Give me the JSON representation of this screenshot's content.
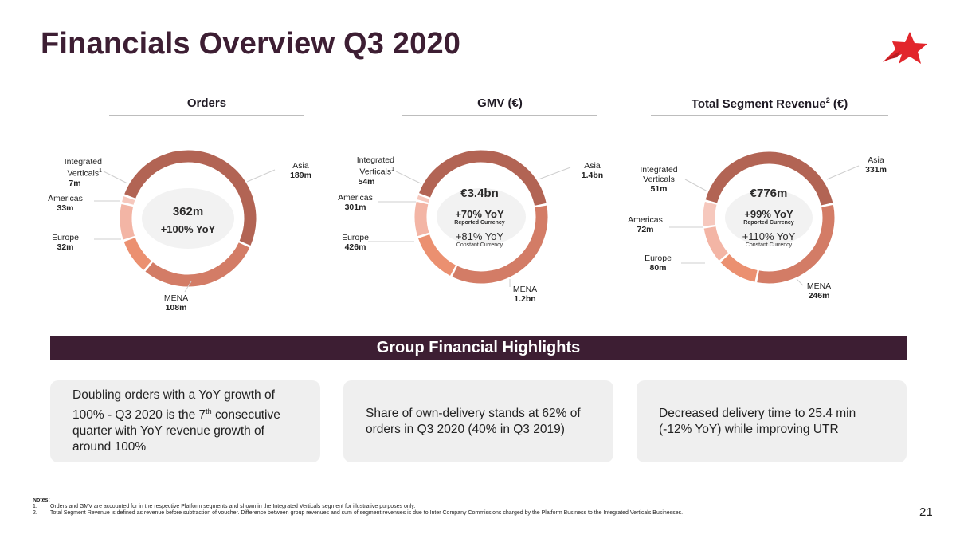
{
  "title": "Financials Overview Q3 2020",
  "page_number": "21",
  "colors": {
    "brand_dark": "#3d1e33",
    "asia": "#b26454",
    "mena": "#d37c66",
    "europe": "#eb9070",
    "americas": "#f3b5a5",
    "integrated": "#f6c8bd",
    "logo_red": "#e2262c"
  },
  "columns": [
    {
      "heading": "Orders",
      "heading_sup": "",
      "heading_suffix": "",
      "center": {
        "value": "362m",
        "yoy": "+100% YoY"
      },
      "segments": [
        {
          "label": "Asia",
          "sup": "",
          "value": "189m",
          "share": 189
        },
        {
          "label": "MENA",
          "sup": "",
          "value": "108m",
          "share": 108
        },
        {
          "label": "Europe",
          "sup": "",
          "value": "32m",
          "share": 32
        },
        {
          "label": "Americas",
          "sup": "",
          "value": "33m",
          "share": 33
        },
        {
          "label": "Integrated Verticals",
          "sup": "1",
          "value": "7m",
          "share": 7
        }
      ]
    },
    {
      "heading": "GMV (€)",
      "heading_sup": "",
      "heading_suffix": "",
      "center": {
        "value": "€3.4bn",
        "yoy_reported": "+70% YoY",
        "reported_label": "Reported Currency",
        "yoy_constant": "+81% YoY",
        "constant_label": "Constant Currency"
      },
      "segments": [
        {
          "label": "Asia",
          "sup": "",
          "value": "1.4bn",
          "share": 1400
        },
        {
          "label": "MENA",
          "sup": "",
          "value": "1.2bn",
          "share": 1200
        },
        {
          "label": "Europe",
          "sup": "",
          "value": "426m",
          "share": 426
        },
        {
          "label": "Americas",
          "sup": "",
          "value": "301m",
          "share": 301
        },
        {
          "label": "Integrated Verticals",
          "sup": "1",
          "value": "54m",
          "share": 54
        }
      ]
    },
    {
      "heading": "Total Segment Revenue",
      "heading_sup": "2",
      "heading_suffix": " (€)",
      "center": {
        "value": "€776m",
        "yoy_reported": "+99% YoY",
        "reported_label": "Reported Currency",
        "yoy_constant": "+110% YoY",
        "constant_label": "Constant Currency"
      },
      "segments": [
        {
          "label": "Asia",
          "sup": "",
          "value": "331m",
          "share": 331
        },
        {
          "label": "MENA",
          "sup": "",
          "value": "246m",
          "share": 246
        },
        {
          "label": "Europe",
          "sup": "",
          "value": "80m",
          "share": 80
        },
        {
          "label": "Americas",
          "sup": "",
          "value": "72m",
          "share": 72
        },
        {
          "label": "Integrated Verticals",
          "sup": "",
          "value": "51m",
          "share": 51
        }
      ]
    }
  ],
  "highlights": {
    "banner": "Group Financial Highlights",
    "cards": [
      {
        "text_before": "Doubling orders with a YoY growth of 100% - Q3 2020 is the 7",
        "sup": "th",
        "text_after": " consecutive quarter with YoY revenue growth of around 100%"
      },
      {
        "text_before": "Share of own-delivery stands at 62% of orders in Q3 2020 (40% in Q3 2019)",
        "sup": "",
        "text_after": ""
      },
      {
        "text_before": "Decreased delivery time to 25.4 min (-12% YoY) while improving UTR",
        "sup": "",
        "text_after": ""
      }
    ]
  },
  "notes": {
    "heading": "Notes:",
    "items": [
      {
        "num": "1.",
        "text": "Orders and GMV are accounted for in the respective Platform segments and shown in the Integrated Verticals segment for illustrative purposes only."
      },
      {
        "num": "2.",
        "text": "Total Segment Revenue is defined as revenue before subtraction of voucher. Difference between group revenues and sum of segment revenues is due to Inter Company Commissions charged by the Platform Business to the Integrated Verticals Businesses."
      }
    ]
  }
}
